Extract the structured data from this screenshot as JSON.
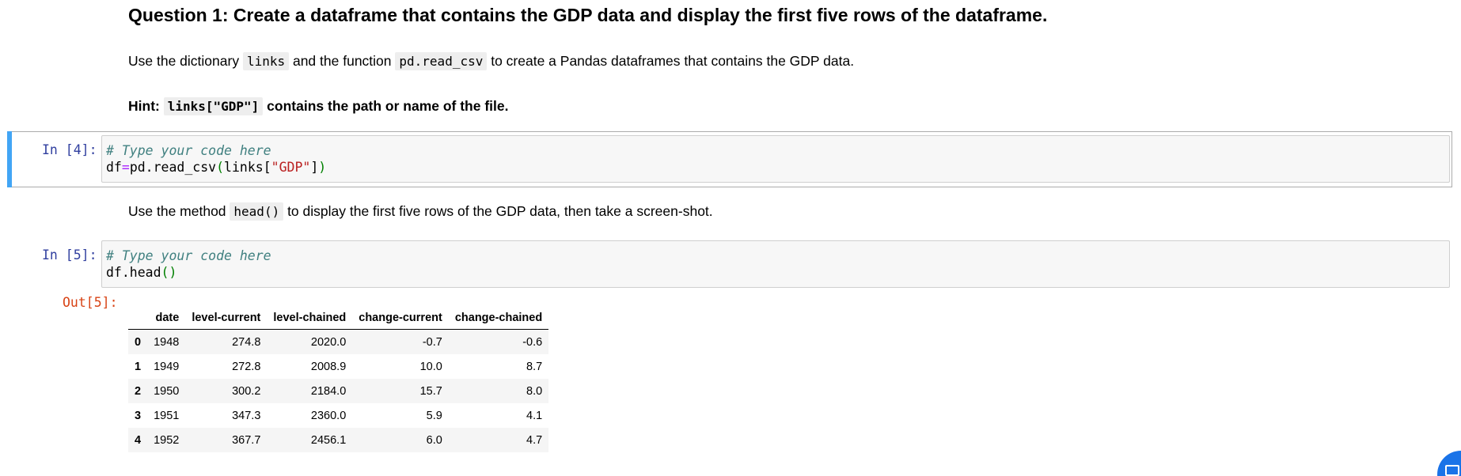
{
  "question": {
    "title": "Question 1: Create a dataframe that contains the GDP data and display the first five rows of the dataframe."
  },
  "instruction1": {
    "pre": "Use the dictionary ",
    "code1": "links",
    "mid": " and the function ",
    "code2": "pd.read_csv",
    "post": " to create a Pandas dataframes that contains the GDP data."
  },
  "hint": {
    "pre": "Hint: ",
    "code": "links[\"GDP\"]",
    "post": " contains the path or name of the file."
  },
  "cell4": {
    "prompt": "In [4]:",
    "comment": "# Type your code here",
    "line2_a": "df",
    "line2_op": "=",
    "line2_b": "pd.read_csv",
    "line2_p1": "(",
    "line2_c": "links[",
    "line2_str": "\"GDP\"",
    "line2_d": "]",
    "line2_p2": ")"
  },
  "instruction2": {
    "pre": "Use the method ",
    "code": "head()",
    "post": " to display the first five rows of the GDP data, then take a screen-shot."
  },
  "cell5": {
    "prompt": "In [5]:",
    "comment": "# Type your code here",
    "line2_a": "df.head",
    "line2_p": "()",
    "out_prompt": "Out[5]:"
  },
  "table": {
    "columns": [
      "",
      "date",
      "level-current",
      "level-chained",
      "change-current",
      "change-chained"
    ],
    "rows": [
      [
        "0",
        "1948",
        "274.8",
        "2020.0",
        "-0.7",
        "-0.6"
      ],
      [
        "1",
        "1949",
        "272.8",
        "2008.9",
        "10.0",
        "8.7"
      ],
      [
        "2",
        "1950",
        "300.2",
        "2184.0",
        "15.7",
        "8.0"
      ],
      [
        "3",
        "1951",
        "347.3",
        "2360.0",
        "5.9",
        "4.1"
      ],
      [
        "4",
        "1952",
        "367.7",
        "2456.1",
        "6.0",
        "4.7"
      ]
    ]
  },
  "colors": {
    "selected_bar": "#42a5f5",
    "in_prompt": "#303f9f",
    "out_prompt": "#d84315",
    "fab": "#1a73e8"
  },
  "icons": {
    "fab": "chat-icon"
  }
}
